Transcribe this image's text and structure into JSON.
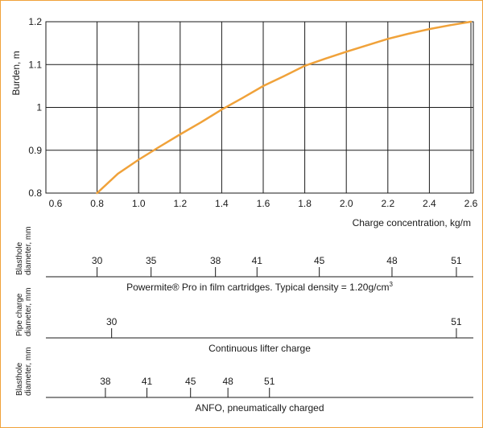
{
  "chart_data": {
    "type": "line",
    "ylabel": "Burden, m",
    "xlabel": "Charge concentration, kg/m",
    "xlim": [
      0.6,
      2.6
    ],
    "ylim": [
      0.8,
      1.2
    ],
    "x_ticks": [
      "0.6",
      "0.8",
      "1.0",
      "1.2",
      "1.4",
      "1.6",
      "1.8",
      "2.0",
      "2.2",
      "2.4",
      "2.6"
    ],
    "y_ticks": [
      "0.8",
      "0.9",
      "1",
      "1.1",
      "1.2"
    ],
    "grid": true,
    "line_color": "#f0a23a",
    "series": [
      {
        "x": [
          0.8,
          0.9,
          1.0,
          1.1,
          1.2,
          1.3,
          1.4,
          1.5,
          1.6,
          1.7,
          1.8,
          1.9,
          2.0,
          2.1,
          2.2,
          2.3,
          2.4,
          2.5,
          2.6
        ],
        "values": [
          0.8,
          0.845,
          0.878,
          0.908,
          0.937,
          0.965,
          0.995,
          1.022,
          1.05,
          1.073,
          1.097,
          1.114,
          1.13,
          1.145,
          1.16,
          1.172,
          1.183,
          1.192,
          1.2
        ]
      }
    ]
  },
  "scales": [
    {
      "axis_label_lines": [
        "Blasthole",
        "diameter, mm"
      ],
      "caption": "Powermite® Pro in film cartridges. Typical density = 1.20g/cm",
      "caption_sup": "3",
      "ticks": [
        {
          "label": "30",
          "at": 0.8
        },
        {
          "label": "35",
          "at": 1.06
        },
        {
          "label": "38",
          "at": 1.37
        },
        {
          "label": "41",
          "at": 1.57
        },
        {
          "label": "45",
          "at": 1.87
        },
        {
          "label": "48",
          "at": 2.22
        },
        {
          "label": "51",
          "at": 2.53
        }
      ]
    },
    {
      "axis_label_lines": [
        "Pipe charge",
        "diameter, mm"
      ],
      "caption": "Continuous lifter charge",
      "caption_sup": "",
      "ticks": [
        {
          "label": "30",
          "at": 0.87
        },
        {
          "label": "51",
          "at": 2.53
        }
      ]
    },
    {
      "axis_label_lines": [
        "Blasthole",
        "diameter, mm"
      ],
      "caption": "ANFO, pneumatically charged",
      "caption_sup": "",
      "ticks": [
        {
          "label": "38",
          "at": 0.84
        },
        {
          "label": "41",
          "at": 1.04
        },
        {
          "label": "45",
          "at": 1.25
        },
        {
          "label": "48",
          "at": 1.43
        },
        {
          "label": "51",
          "at": 1.63
        }
      ]
    }
  ]
}
